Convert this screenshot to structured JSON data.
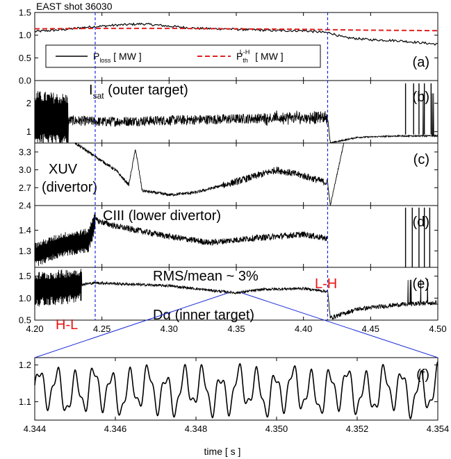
{
  "figure": {
    "shot_title": "EAST shot 36030",
    "xlabel": "time  [ s ]"
  },
  "colors": {
    "ploss": "#000000",
    "pth": "#e02020",
    "transition_marker": "#1a2bd8",
    "zoom_lines": "#1a2bd8",
    "annotation_red": "#ee1111"
  },
  "chart_data": [
    {
      "type": "line",
      "panel": "(a)",
      "xlim": [
        4.2,
        4.5
      ],
      "ylim": [
        0.0,
        1.5
      ],
      "y_ticks": [
        "0.0",
        "0.5",
        "1.0",
        "1.5"
      ],
      "legend_position": "inside-middle",
      "series": [
        {
          "name": "P",
          "sub": "loss",
          "unit": " [ MW ]",
          "style": "solid",
          "x": [
            4.2,
            4.22,
            4.24,
            4.26,
            4.28,
            4.3,
            4.32,
            4.34,
            4.36,
            4.38,
            4.4,
            4.42,
            4.43,
            4.45,
            4.47,
            4.5
          ],
          "y": [
            1.08,
            1.12,
            1.18,
            1.22,
            1.25,
            1.2,
            1.15,
            1.14,
            1.12,
            1.1,
            1.1,
            1.05,
            0.95,
            0.9,
            0.88,
            0.8
          ]
        },
        {
          "name": "P",
          "sub": "th",
          "sup": "L-H",
          "unit": " [ MW ]",
          "style": "dashed",
          "x": [
            4.2,
            4.25,
            4.3,
            4.35,
            4.4,
            4.42,
            4.45,
            4.5
          ],
          "y": [
            1.14,
            1.15,
            1.15,
            1.14,
            1.13,
            1.12,
            1.11,
            1.1
          ]
        }
      ]
    },
    {
      "type": "line",
      "panel": "(b)",
      "label": "I",
      "label_sub": "sat",
      "label_rest": " (outer target)",
      "xlim": [
        4.2,
        4.5
      ],
      "ylim": [
        0.6,
        2.8
      ],
      "y_ticks": [
        "1",
        "2"
      ],
      "series": [
        {
          "x": [
            4.2,
            4.225,
            4.25,
            4.3,
            4.35,
            4.4,
            4.418,
            4.42,
            4.44,
            4.47,
            4.5
          ],
          "y": [
            1.5,
            1.4,
            1.35,
            1.4,
            1.45,
            1.5,
            1.5,
            0.6,
            0.8,
            0.85,
            0.85
          ]
        }
      ]
    },
    {
      "type": "line",
      "panel": "(c)",
      "label": "XUV",
      "label_line2": "(divertor)",
      "xlim": [
        4.2,
        4.5
      ],
      "ylim": [
        2.4,
        3.45
      ],
      "y_ticks": [
        "2.4",
        "2.7",
        "3.0",
        "3.3"
      ],
      "series": [
        {
          "x": [
            4.23,
            4.24,
            4.26,
            4.27,
            4.275,
            4.28,
            4.3,
            4.32,
            4.35,
            4.38,
            4.4,
            4.418,
            4.42,
            4.43
          ],
          "y": [
            3.45,
            3.3,
            3.0,
            2.75,
            3.35,
            2.65,
            2.58,
            2.62,
            2.8,
            3.0,
            2.9,
            2.78,
            2.4,
            3.45
          ]
        }
      ]
    },
    {
      "type": "line",
      "panel": "(d)",
      "label": "CIII (lower divertor)",
      "xlim": [
        4.2,
        4.5
      ],
      "ylim": [
        1.22,
        1.52
      ],
      "y_ticks": [
        "1.3",
        "1.4"
      ],
      "series": [
        {
          "x": [
            4.2,
            4.22,
            4.24,
            4.245,
            4.26,
            4.3,
            4.33,
            4.36,
            4.4,
            4.418
          ],
          "y": [
            1.28,
            1.33,
            1.35,
            1.45,
            1.42,
            1.37,
            1.34,
            1.36,
            1.38,
            1.36
          ]
        }
      ]
    },
    {
      "type": "line",
      "panel": "(e)",
      "label": "Dα (inner target)",
      "xlim": [
        4.2,
        4.5
      ],
      "ylim": [
        0.5,
        1.7
      ],
      "y_ticks": [
        "0.5",
        "1.0",
        "1.5"
      ],
      "x_ticks": [
        "4.20",
        "4.25",
        "4.30",
        "4.35",
        "4.40",
        "4.45",
        "4.50"
      ],
      "series": [
        {
          "x": [
            4.2,
            4.22,
            4.245,
            4.26,
            4.3,
            4.33,
            4.35,
            4.37,
            4.4,
            4.418,
            4.42,
            4.44,
            4.47,
            4.5
          ],
          "y": [
            1.2,
            1.25,
            1.35,
            1.33,
            1.28,
            1.18,
            1.12,
            1.2,
            1.22,
            1.15,
            0.55,
            0.75,
            0.85,
            0.9
          ]
        }
      ],
      "annotations": [
        "RMS/mean ~ 3%",
        "L-H",
        "H-L"
      ]
    },
    {
      "type": "line",
      "panel": "(f)",
      "xlim": [
        4.344,
        4.354
      ],
      "ylim": [
        1.05,
        1.22
      ],
      "y_ticks": [
        "1.1",
        "1.2"
      ],
      "x_ticks": [
        "4.344",
        "4.346",
        "4.348",
        "4.350",
        "4.352",
        "4.354"
      ],
      "oscillation_period_s": 0.00045,
      "series": [
        {
          "mean": 1.13,
          "amplitude": 0.05
        }
      ]
    }
  ],
  "transitions": {
    "h_to_l_time": 4.245,
    "l_to_h_time": 4.418
  }
}
